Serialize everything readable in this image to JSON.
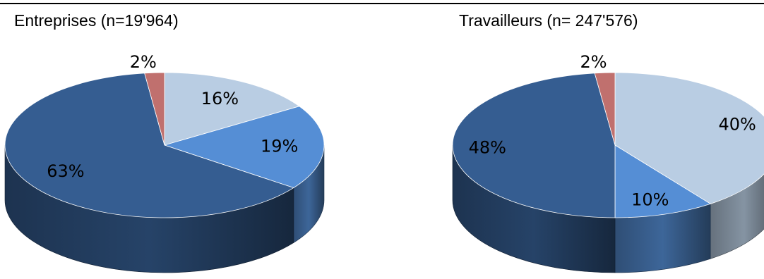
{
  "chart_data": [
    {
      "type": "pie",
      "title": "Entreprises (n=19'964)",
      "slices": [
        {
          "label": "16%",
          "value": 16,
          "color": "#b9cde3"
        },
        {
          "label": "19%",
          "value": 19,
          "color": "#558ed5"
        },
        {
          "label": "63%",
          "value": 63,
          "color": "#355d91"
        },
        {
          "label": "2%",
          "value": 2,
          "color": "#c0706e"
        }
      ]
    },
    {
      "type": "pie",
      "title": "Travailleurs (n= 247'576)",
      "slices": [
        {
          "label": "40%",
          "value": 40,
          "color": "#b9cde3"
        },
        {
          "label": "10%",
          "value": 10,
          "color": "#558ed5"
        },
        {
          "label": "48%",
          "value": 48,
          "color": "#355d91"
        },
        {
          "label": "2%",
          "value": 2,
          "color": "#c0706e"
        }
      ]
    }
  ]
}
